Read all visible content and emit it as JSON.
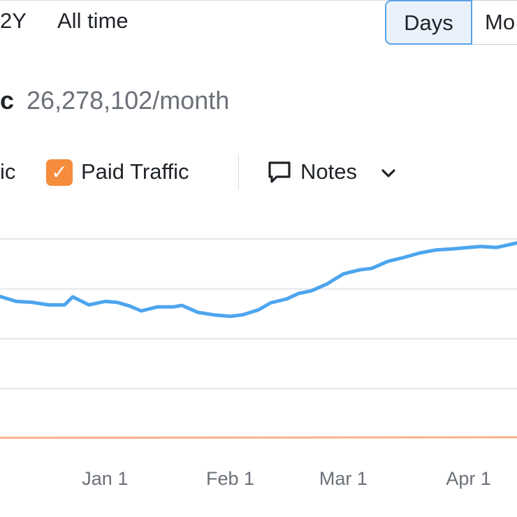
{
  "toolbar": {
    "range_2y": "2Y",
    "range_all_time": "All time",
    "days_label": "Days",
    "months_label_partial": "Mo"
  },
  "headline": {
    "metric_name_partial": "c",
    "metric_value": "26,278,102/month"
  },
  "legend": {
    "organic_label_partial": "ic",
    "paid_label": "Paid Traffic",
    "paid_checked": true,
    "notes_label": "Notes"
  },
  "colors": {
    "organic": "#4da5ee",
    "paid": "#f6b48a",
    "gridline": "#e3e6ea",
    "paid_checkbox": "#f58c3c",
    "active_segment_border": "#5aa2e6"
  },
  "icons": {
    "checkbox": "check-icon",
    "notes": "speech-bubble-icon",
    "notes_dropdown": "chevron-down-icon"
  },
  "chart_data": {
    "type": "line",
    "x_tick_labels": [
      "Jan 1",
      "Feb 1",
      "Mar 1",
      "Apr 1"
    ],
    "xlim": [
      "2022-12-06",
      "2023-04-13"
    ],
    "ylim": [
      0,
      4
    ],
    "y_gridlines": [
      1,
      2,
      3,
      4
    ],
    "grid": true,
    "legend": "top-left",
    "series": [
      {
        "name_partial": "ic",
        "color": "#4da5ee",
        "x": [
          "2022-12-06",
          "2022-12-10",
          "2022-12-14",
          "2022-12-18",
          "2022-12-22",
          "2022-12-24",
          "2022-12-28",
          "2023-01-01",
          "2023-01-04",
          "2023-01-07",
          "2023-01-10",
          "2023-01-14",
          "2023-01-18",
          "2023-01-20",
          "2023-01-24",
          "2023-01-28",
          "2023-02-01",
          "2023-02-04",
          "2023-02-08",
          "2023-02-11",
          "2023-02-15",
          "2023-02-18",
          "2023-02-21",
          "2023-02-25",
          "2023-03-01",
          "2023-03-05",
          "2023-03-08",
          "2023-03-12",
          "2023-03-16",
          "2023-03-20",
          "2023-03-24",
          "2023-03-28",
          "2023-04-01",
          "2023-04-04",
          "2023-04-08",
          "2023-04-13"
        ],
        "values": [
          2.85,
          2.75,
          2.73,
          2.68,
          2.68,
          2.84,
          2.68,
          2.75,
          2.73,
          2.66,
          2.56,
          2.64,
          2.64,
          2.67,
          2.53,
          2.48,
          2.45,
          2.48,
          2.58,
          2.72,
          2.8,
          2.91,
          2.96,
          3.1,
          3.3,
          3.38,
          3.41,
          3.55,
          3.63,
          3.72,
          3.78,
          3.8,
          3.83,
          3.85,
          3.83,
          3.92
        ]
      },
      {
        "name": "Paid Traffic",
        "color": "#f6b48a",
        "x": [
          "2022-12-06",
          "2023-04-13"
        ],
        "values": [
          0.02,
          0.03
        ]
      }
    ]
  }
}
